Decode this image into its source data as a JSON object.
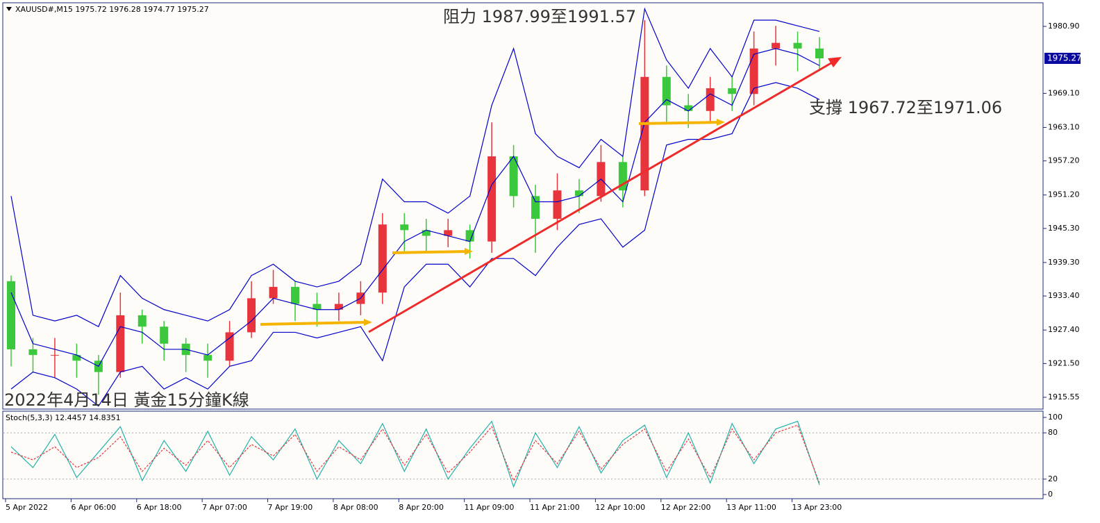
{
  "chart_data": [
    {
      "type": "candlestick",
      "title": "XAUUSD#,M15  1975.72 1976.28 1974.77 1975.27",
      "categories": [
        "5 Apr 2022",
        null,
        null,
        "6 Apr 06:00",
        null,
        null,
        "6 Apr 18:00",
        null,
        null,
        "7 Apr 07:00",
        null,
        null,
        "7 Apr 19:00",
        null,
        null,
        "8 Apr 08:00",
        null,
        null,
        "8 Apr 20:00",
        null,
        null,
        "11 Apr 09:00",
        null,
        null,
        "11 Apr 21:00",
        null,
        null,
        "12 Apr 10:00",
        null,
        null,
        "12 Apr 22:00",
        null,
        null,
        "13 Apr 11:00",
        null,
        null,
        "13 Apr 23:00",
        null
      ],
      "open": [
        1936,
        1924,
        1923,
        1923,
        1922,
        1920,
        1930,
        1928,
        1925,
        1923,
        1922,
        1927,
        1933,
        1935,
        1932,
        1931,
        1932,
        1934,
        1946,
        1945,
        1944,
        1945,
        1943,
        1958,
        1951,
        1947,
        1952,
        1951,
        1957,
        1952,
        1972,
        1967,
        1966,
        1970,
        1969,
        1977,
        1978,
        1977
      ],
      "high": [
        1937,
        1926,
        1926,
        1925,
        1923,
        1934,
        1931,
        1929,
        1926,
        1925,
        1929,
        1936,
        1938,
        1936,
        1934,
        1934,
        1936,
        1948,
        1948,
        1947,
        1947,
        1946,
        1964,
        1960,
        1953,
        1955,
        1954,
        1960,
        1958,
        1982,
        1974,
        1969,
        1972,
        1972,
        1980,
        1981,
        1980,
        1979
      ],
      "low": [
        1921,
        1920,
        1919,
        1919,
        1916,
        1919,
        1925,
        1922,
        1920,
        1919,
        1921,
        1926,
        1932,
        1929,
        1928,
        1929,
        1930,
        1932,
        1941,
        1941,
        1942,
        1940,
        1941,
        1949,
        1941,
        1945,
        1948,
        1950,
        1949,
        1951,
        1964,
        1963,
        1964,
        1966,
        1967,
        1974,
        1973,
        1973
      ],
      "close": [
        1924,
        1923,
        1923,
        1922,
        1920,
        1930,
        1928,
        1925,
        1923,
        1922,
        1927,
        1933,
        1935,
        1932,
        1931,
        1932,
        1934,
        1946,
        1945,
        1944,
        1945,
        1943,
        1958,
        1951,
        1947,
        1952,
        1951,
        1957,
        1952,
        1972,
        1967,
        1966,
        1970,
        1969,
        1977,
        1978,
        1977,
        1975.27
      ],
      "up_color": "#e8343c",
      "down_color": "#3cc83c",
      "bands": {
        "color": "#0000cc",
        "upper": [
          1951,
          1930,
          1929,
          1930,
          1928,
          1937,
          1933,
          1931,
          1930,
          1929,
          1931,
          1937,
          1939,
          1936,
          1935,
          1936,
          1939,
          1954,
          1950,
          1950,
          1948,
          1951,
          1967,
          1977,
          1962,
          1958,
          1956,
          1961,
          1958,
          1984,
          1975,
          1970,
          1977,
          1972,
          1982,
          1982,
          1981,
          1980
        ],
        "middle": [
          1934,
          1925,
          1924,
          1923,
          1921,
          1928,
          1927,
          1924,
          1924,
          1923,
          1926,
          1929,
          1933,
          1932,
          1931,
          1931,
          1933,
          1938,
          1943,
          1945,
          1944,
          1943,
          1953,
          1958,
          1950,
          1950,
          1951,
          1954,
          1950,
          1964,
          1968,
          1966,
          1969,
          1967,
          1976,
          1977,
          1976,
          1974
        ],
        "lower": [
          1917,
          1920,
          1919,
          1917,
          1914,
          1920,
          1921,
          1917,
          1919,
          1917,
          1921,
          1922,
          1927,
          1927,
          1926,
          1927,
          1928,
          1922,
          1935,
          1939,
          1939,
          1935,
          1940,
          1940,
          1937,
          1942,
          1946,
          1947,
          1942,
          1945,
          1960,
          1961,
          1961,
          1962,
          1970,
          1971,
          1970,
          1968
        ]
      },
      "current_price": 1975.27,
      "ylim": [
        1913.47,
        1985.06
      ],
      "yticks": [
        {
          "value": 1980.9,
          "label": "1980.90"
        },
        {
          "value": 1969.1,
          "label": "1969.10"
        },
        {
          "value": 1963.1,
          "label": "1963.10"
        },
        {
          "value": 1957.2,
          "label": "1957.20"
        },
        {
          "value": 1951.2,
          "label": "1951.20"
        },
        {
          "value": 1945.3,
          "label": "1945.30"
        },
        {
          "value": 1939.3,
          "label": "1939.30"
        },
        {
          "value": 1933.4,
          "label": "1933.40"
        },
        {
          "value": 1927.4,
          "label": "1927.40"
        },
        {
          "value": 1921.5,
          "label": "1921.50"
        },
        1915.55
      ],
      "annotations": [
        "阻力 1987.99至1991.57",
        "支撐 1967.72至1971.06",
        "2022年4月14日 黃金15分鐘K線"
      ]
    },
    {
      "type": "line",
      "title": "Stoch(5,3,3) 12.4457 14.8351",
      "series": [
        {
          "color": "#20b2aa",
          "style": "solid",
          "values": [
            62,
            35,
            78,
            22,
            55,
            88,
            18,
            70,
            30,
            82,
            25,
            75,
            45,
            85,
            20,
            70,
            40,
            92,
            30,
            85,
            20,
            60,
            95,
            10,
            80,
            35,
            88,
            28,
            70,
            90,
            22,
            80,
            15,
            92,
            40,
            85,
            95,
            12.4457
          ]
        },
        {
          "color": "#e8343c",
          "style": "dashed",
          "values": [
            55,
            45,
            62,
            35,
            48,
            75,
            30,
            60,
            38,
            70,
            35,
            65,
            50,
            78,
            30,
            62,
            45,
            85,
            38,
            78,
            28,
            55,
            88,
            18,
            70,
            40,
            82,
            33,
            65,
            85,
            30,
            72,
            22,
            85,
            45,
            80,
            90,
            14.8351
          ]
        }
      ],
      "ylim": [
        -5.4,
        108.1
      ],
      "yticks": [
        100,
        80,
        20,
        0
      ],
      "levels": [
        80,
        20
      ]
    }
  ]
}
